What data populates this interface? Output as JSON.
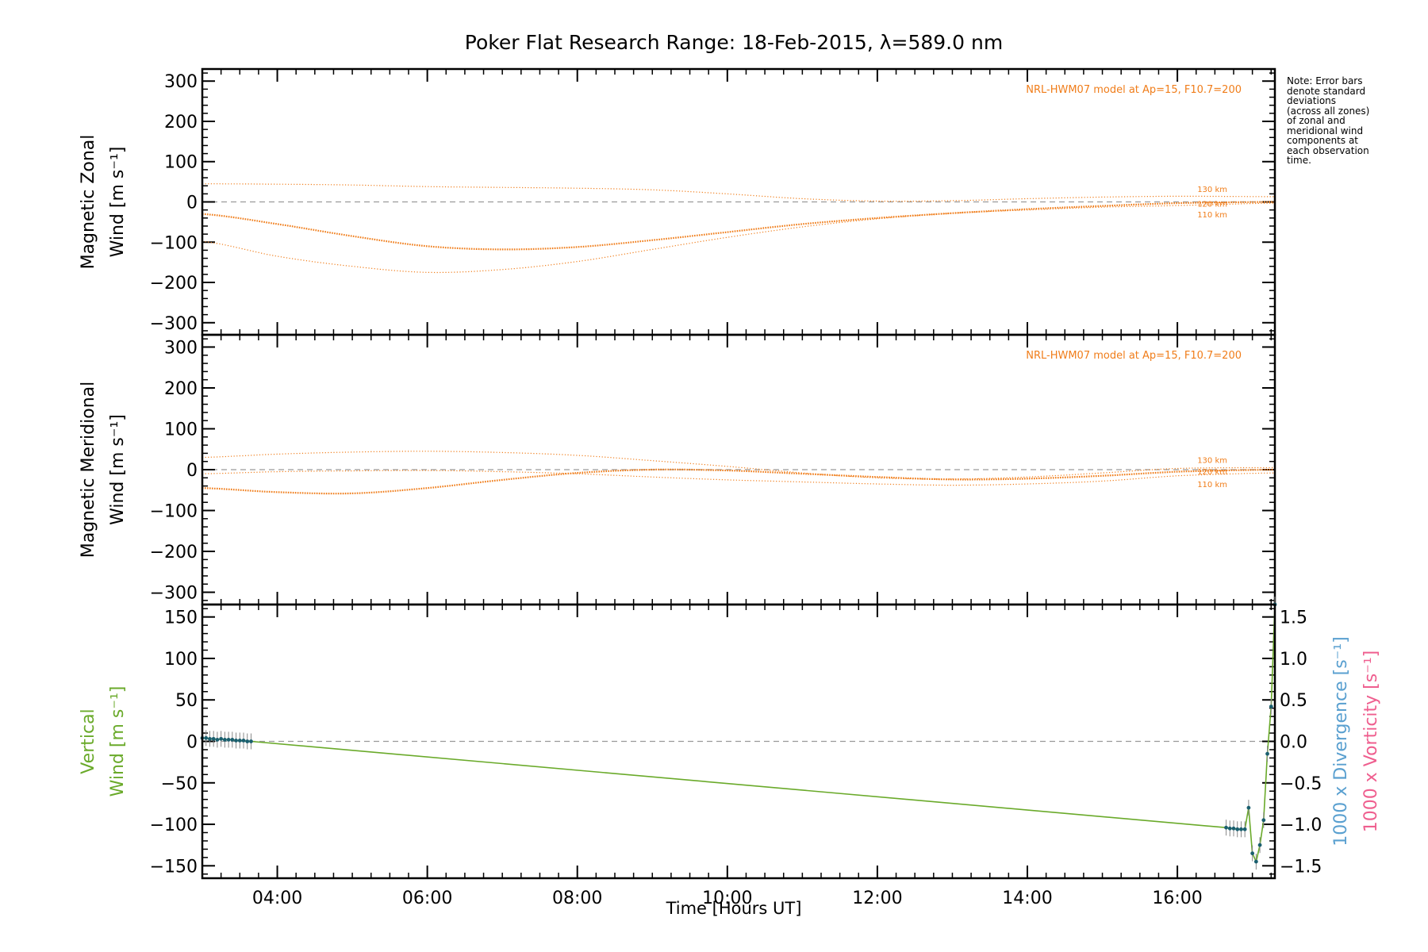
{
  "chart_data": {
    "title": "Poker Flat Research Range: 18-Feb-2015, λ=589.0 nm",
    "xlabel": "Time [Hours UT]",
    "xlim": [
      3.0,
      17.3
    ],
    "xticks": [
      4,
      6,
      8,
      10,
      12,
      14,
      16
    ],
    "xticklabels": [
      "04:00",
      "06:00",
      "08:00",
      "10:00",
      "12:00",
      "14:00",
      "16:00"
    ],
    "note": [
      "Note: Error bars",
      "denote standard",
      "deviations",
      "(across all zones)",
      "of zonal and",
      "meridional wind",
      "components at",
      "each observation",
      "time."
    ],
    "colors": {
      "model": "#f07d1a",
      "vertical": "#6aaa2a",
      "divergence": "#5aa0d0",
      "vorticity": "#ef5f8f",
      "points": "#1a5f6f",
      "zero": "#9a9a9a",
      "axis": "#000000"
    },
    "panels": [
      {
        "type": "line",
        "ylabel_lines": [
          "Magnetic Zonal",
          "Wind [m s⁻¹]"
        ],
        "ylim": [
          -330,
          330
        ],
        "yticks": [
          -300,
          -200,
          -100,
          0,
          100,
          200,
          300
        ],
        "model_label": "NRL-HWM07 model at Ap=15, F10.7=200",
        "series": [
          {
            "name": "130 km",
            "x": [
              3.0,
              4.0,
              5.0,
              6.0,
              7.0,
              8.0,
              9.0,
              10.0,
              11.0,
              12.0,
              13.0,
              14.0,
              15.0,
              16.0,
              17.3
            ],
            "values": [
              45,
              44,
              42,
              38,
              36,
              34,
              30,
              20,
              8,
              2,
              3,
              8,
              12,
              14,
              13
            ]
          },
          {
            "name": "120 km",
            "x": [
              3.0,
              4.0,
              5.0,
              6.0,
              7.0,
              8.0,
              9.0,
              10.0,
              11.0,
              12.0,
              13.0,
              14.0,
              15.0,
              16.0,
              17.3
            ],
            "values": [
              -30,
              -55,
              -85,
              -110,
              -118,
              -112,
              -95,
              -75,
              -55,
              -40,
              -28,
              -18,
              -10,
              -3,
              0
            ]
          },
          {
            "name": "110 km",
            "x": [
              3.0,
              4.0,
              5.0,
              6.0,
              7.0,
              8.0,
              9.0,
              10.0,
              11.0,
              12.0,
              13.0,
              14.0,
              15.0,
              16.0,
              17.3
            ],
            "values": [
              -98,
              -135,
              -160,
              -175,
              -168,
              -148,
              -118,
              -88,
              -62,
              -42,
              -28,
              -20,
              -13,
              -9,
              -3
            ]
          }
        ]
      },
      {
        "type": "line",
        "ylabel_lines": [
          "Magnetic Meridional",
          "Wind [m s⁻¹]"
        ],
        "ylim": [
          -330,
          330
        ],
        "yticks": [
          -300,
          -200,
          -100,
          0,
          100,
          200,
          300
        ],
        "model_label": "NRL-HWM07 model at Ap=15, F10.7=200",
        "series": [
          {
            "name": "130 km",
            "x": [
              3.0,
              4.0,
              5.0,
              6.0,
              7.0,
              8.0,
              9.0,
              10.0,
              11.0,
              12.0,
              13.0,
              14.0,
              15.0,
              16.0,
              17.3
            ],
            "values": [
              30,
              38,
              43,
              45,
              42,
              35,
              22,
              8,
              -8,
              -20,
              -23,
              -18,
              -8,
              3,
              5
            ]
          },
          {
            "name": "120 km",
            "x": [
              3.0,
              4.0,
              5.0,
              6.0,
              7.0,
              8.0,
              9.0,
              10.0,
              11.0,
              12.0,
              13.0,
              14.0,
              15.0,
              16.0,
              17.3
            ],
            "values": [
              -45,
              -55,
              -58,
              -45,
              -25,
              -8,
              0,
              -2,
              -10,
              -18,
              -24,
              -22,
              -15,
              -5,
              0
            ]
          },
          {
            "name": "110 km",
            "x": [
              3.0,
              4.0,
              5.0,
              6.0,
              7.0,
              8.0,
              9.0,
              10.0,
              11.0,
              12.0,
              13.0,
              14.0,
              15.0,
              16.0,
              17.3
            ],
            "values": [
              -10,
              -5,
              -3,
              -2,
              -5,
              -10,
              -18,
              -25,
              -30,
              -35,
              -38,
              -35,
              -28,
              -15,
              -8
            ]
          }
        ]
      },
      {
        "type": "line",
        "ylabel_lines": [
          "Vertical",
          "Wind [m s⁻¹]"
        ],
        "ylim": [
          -165,
          165
        ],
        "yticks": [
          -150,
          -100,
          -50,
          0,
          50,
          100,
          150
        ],
        "y2label_lines": [
          "1000 x Vorticity [s⁻¹]",
          "1000 x Divergence [s⁻¹]"
        ],
        "y2lim": [
          -1.65,
          1.65
        ],
        "y2ticks": [
          -1.5,
          -1.0,
          -0.5,
          0.0,
          0.5,
          1.0,
          1.5
        ],
        "y2ticklabels": [
          "-1.5",
          "-1.0",
          "-0.5",
          "0.0",
          "0.5",
          "1.0",
          "1.5"
        ],
        "series": [
          {
            "name": "Vertical Wind",
            "x": [
              3.0,
              3.05,
              3.1,
              3.15,
              3.2,
              3.25,
              3.3,
              3.35,
              3.4,
              3.45,
              3.5,
              3.55,
              3.6,
              3.65,
              16.65,
              16.7,
              16.75,
              16.8,
              16.85,
              16.9,
              16.95,
              17.0,
              17.05,
              17.1,
              17.15,
              17.2,
              17.25,
              17.3
            ],
            "values": [
              4,
              4,
              3,
              3,
              2,
              3,
              2,
              2,
              2,
              1,
              1,
              1,
              0,
              0,
              -104,
              -105,
              -105,
              -106,
              -106,
              -106,
              -80,
              -135,
              -145,
              -125,
              -95,
              -15,
              42,
              165
            ]
          }
        ]
      }
    ]
  }
}
